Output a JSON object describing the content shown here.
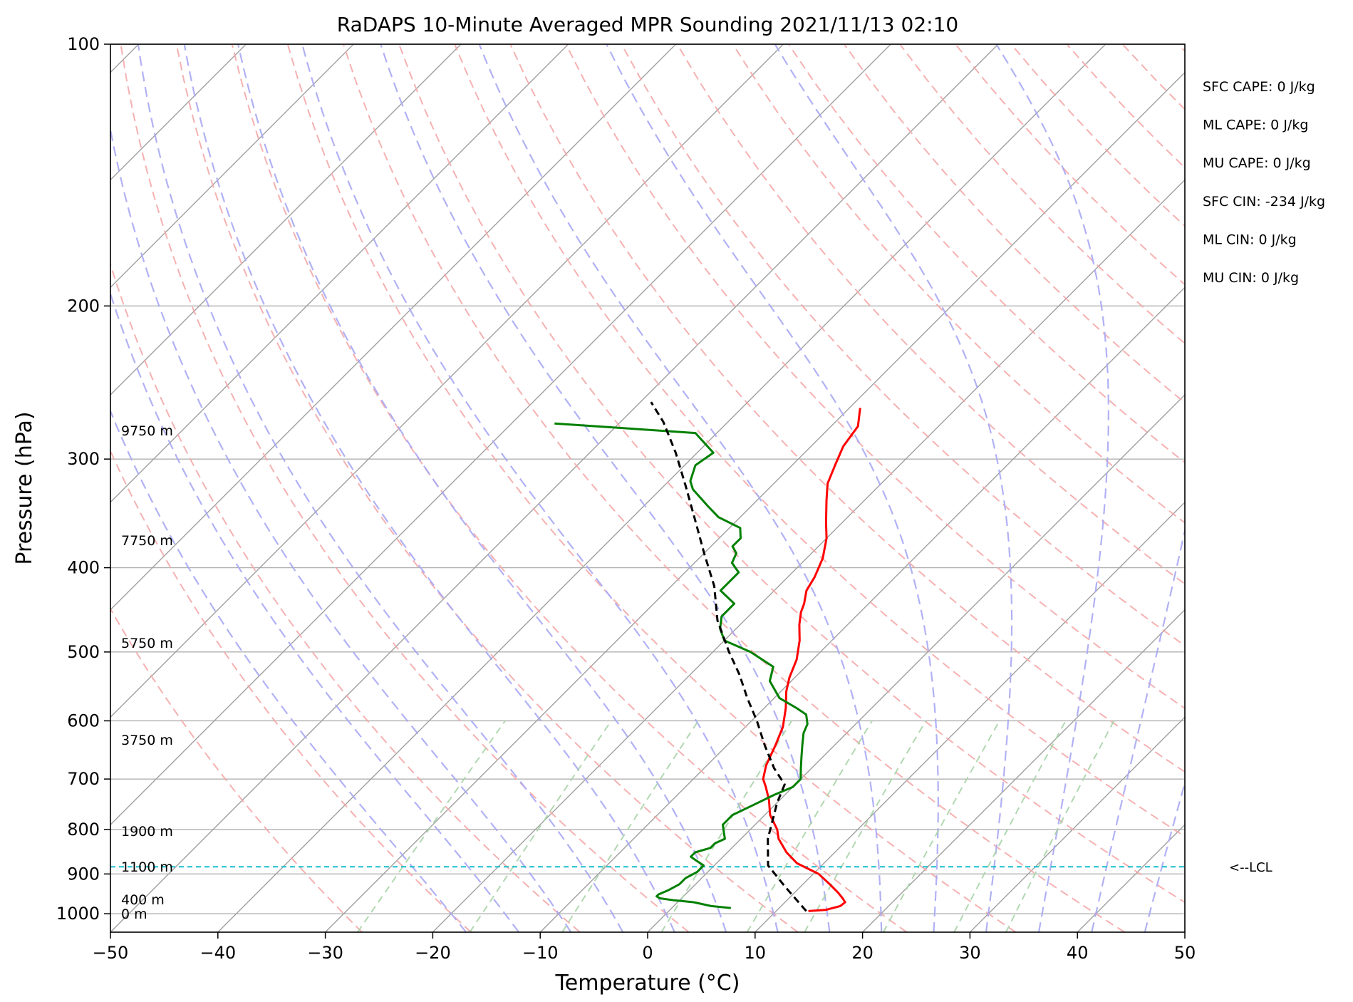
{
  "chart_data": {
    "type": "line",
    "subtype": "skew-t log-p sounding",
    "title": "RaDAPS 10-Minute Averaged MPR Sounding 2021/11/13 02:10",
    "xlabel": "Temperature (°C)",
    "ylabel": "Pressure (hPa)",
    "xlim": [
      -50,
      50
    ],
    "ylim": [
      1050,
      100
    ],
    "y_scale": "log",
    "x_ticks": [
      -50,
      -40,
      -30,
      -20,
      -10,
      0,
      10,
      20,
      30,
      40,
      50
    ],
    "x_tick_labels": [
      "−50",
      "−40",
      "−30",
      "−20",
      "−10",
      "0",
      "10",
      "20",
      "30",
      "40",
      "50"
    ],
    "y_ticks": [
      100,
      200,
      300,
      400,
      500,
      600,
      700,
      800,
      900,
      1000
    ],
    "y_tick_labels": [
      "100",
      "200",
      "300",
      "400",
      "500",
      "600",
      "700",
      "800",
      "900",
      "1000"
    ],
    "grid": true,
    "skew_isotherms_color": "#a0a0a0",
    "dry_adiabats_color": "#f4a8a8",
    "moist_adiabats_color": "#a8a8f4",
    "mixing_ratio_color": "#a8d4a8",
    "series": [
      {
        "color": "#ff0000",
        "points": [
          [
            13.0,
            993
          ],
          [
            14.5,
            990
          ],
          [
            15.5,
            980
          ],
          [
            15.6,
            970
          ],
          [
            15.0,
            960
          ],
          [
            14.0,
            945
          ],
          [
            12.5,
            925
          ],
          [
            10.5,
            900
          ],
          [
            7.5,
            875
          ],
          [
            5.5,
            850
          ],
          [
            3.5,
            820
          ],
          [
            2.5,
            800
          ],
          [
            0.5,
            770
          ],
          [
            -1.0,
            740
          ],
          [
            -2.5,
            715
          ],
          [
            -3.5,
            700
          ],
          [
            -4.5,
            675
          ],
          [
            -5.5,
            640
          ],
          [
            -6.5,
            610
          ],
          [
            -8.0,
            580
          ],
          [
            -9.5,
            555
          ],
          [
            -10.5,
            535
          ],
          [
            -11.5,
            510
          ],
          [
            -13.0,
            485
          ],
          [
            -14.5,
            465
          ],
          [
            -15.5,
            450
          ],
          [
            -16.0,
            440
          ],
          [
            -17.0,
            425
          ],
          [
            -17.5,
            410
          ],
          [
            -18.5,
            390
          ],
          [
            -20.0,
            370
          ],
          [
            -21.5,
            355
          ],
          [
            -23.5,
            335
          ],
          [
            -25.0,
            320
          ],
          [
            -26.0,
            305
          ],
          [
            -27.0,
            290
          ],
          [
            -27.5,
            275
          ],
          [
            -29.0,
            262
          ]
        ]
      },
      {
        "color": "#008000",
        "points": [
          [
            5.5,
            985
          ],
          [
            3.5,
            980
          ],
          [
            1.5,
            970
          ],
          [
            -0.5,
            965
          ],
          [
            -2.0,
            960
          ],
          [
            -2.5,
            955
          ],
          [
            -2.5,
            950
          ],
          [
            -2.0,
            940
          ],
          [
            -1.5,
            925
          ],
          [
            -1.5,
            910
          ],
          [
            -1.0,
            895
          ],
          [
            -1.0,
            880
          ],
          [
            -2.0,
            870
          ],
          [
            -3.0,
            860
          ],
          [
            -3.0,
            850
          ],
          [
            -2.0,
            840
          ],
          [
            -2.0,
            830
          ],
          [
            -1.5,
            820
          ],
          [
            -2.0,
            810
          ],
          [
            -2.5,
            800
          ],
          [
            -3.0,
            790
          ],
          [
            -3.0,
            770
          ],
          [
            -2.0,
            750
          ],
          [
            -1.0,
            730
          ],
          [
            0.0,
            715
          ],
          [
            0.0,
            700
          ],
          [
            -0.5,
            690
          ],
          [
            -1.0,
            680
          ],
          [
            -2.0,
            660
          ],
          [
            -3.0,
            640
          ],
          [
            -4.0,
            620
          ],
          [
            -4.5,
            605
          ],
          [
            -5.5,
            590
          ],
          [
            -7.0,
            580
          ],
          [
            -9.5,
            565
          ],
          [
            -12.0,
            540
          ],
          [
            -13.0,
            520
          ],
          [
            -16.5,
            500
          ],
          [
            -20.0,
            485
          ],
          [
            -21.5,
            470
          ],
          [
            -22.5,
            455
          ],
          [
            -22.5,
            440
          ],
          [
            -25.0,
            425
          ],
          [
            -25.0,
            405
          ],
          [
            -26.5,
            395
          ],
          [
            -27.0,
            385
          ],
          [
            -28.0,
            378
          ],
          [
            -28.0,
            370
          ],
          [
            -29.0,
            360
          ],
          [
            -32.0,
            350
          ],
          [
            -34.0,
            340
          ],
          [
            -37.0,
            325
          ],
          [
            -38.0,
            318
          ],
          [
            -39.0,
            305
          ],
          [
            -38.5,
            295
          ],
          [
            -42.0,
            280
          ],
          [
            -56.0,
            273
          ]
        ]
      },
      {
        "color": "#000000",
        "dashed": true,
        "points": [
          [
            12.8,
            993
          ],
          [
            8.5,
            930
          ],
          [
            5.0,
            880
          ],
          [
            2.5,
            820
          ],
          [
            0.0,
            745
          ],
          [
            -1.0,
            710
          ],
          [
            -3.5,
            680
          ],
          [
            -6.5,
            640
          ],
          [
            -9.5,
            600
          ],
          [
            -12.5,
            565
          ],
          [
            -15.5,
            530
          ],
          [
            -18.5,
            500
          ],
          [
            -22.5,
            460
          ],
          [
            -26.0,
            420
          ],
          [
            -30.0,
            385
          ],
          [
            -34.0,
            352
          ],
          [
            -38.0,
            322
          ],
          [
            -42.0,
            295
          ],
          [
            -46.0,
            272
          ],
          [
            -49.0,
            258
          ]
        ]
      }
    ],
    "annotations": {
      "stats": [
        "SFC CAPE: 0 J/kg",
        "ML CAPE: 0 J/kg",
        "MU CAPE: 0 J/kg",
        "SFC CIN: -234 J/kg",
        "ML CIN: 0 J/kg",
        "MU CIN: 0 J/kg"
      ],
      "lcl_label": "<--LCL",
      "lcl_pressure": 883,
      "heights": [
        {
          "label": "9750 m",
          "pressure": 278
        },
        {
          "label": "7750 m",
          "pressure": 372
        },
        {
          "label": "5750 m",
          "pressure": 488
        },
        {
          "label": "3750 m",
          "pressure": 631
        },
        {
          "label": "1900 m",
          "pressure": 803
        },
        {
          "label": "1100 m",
          "pressure": 883
        },
        {
          "label": "400 m",
          "pressure": 963
        },
        {
          "label": "0 m",
          "pressure": 1000
        }
      ]
    }
  }
}
